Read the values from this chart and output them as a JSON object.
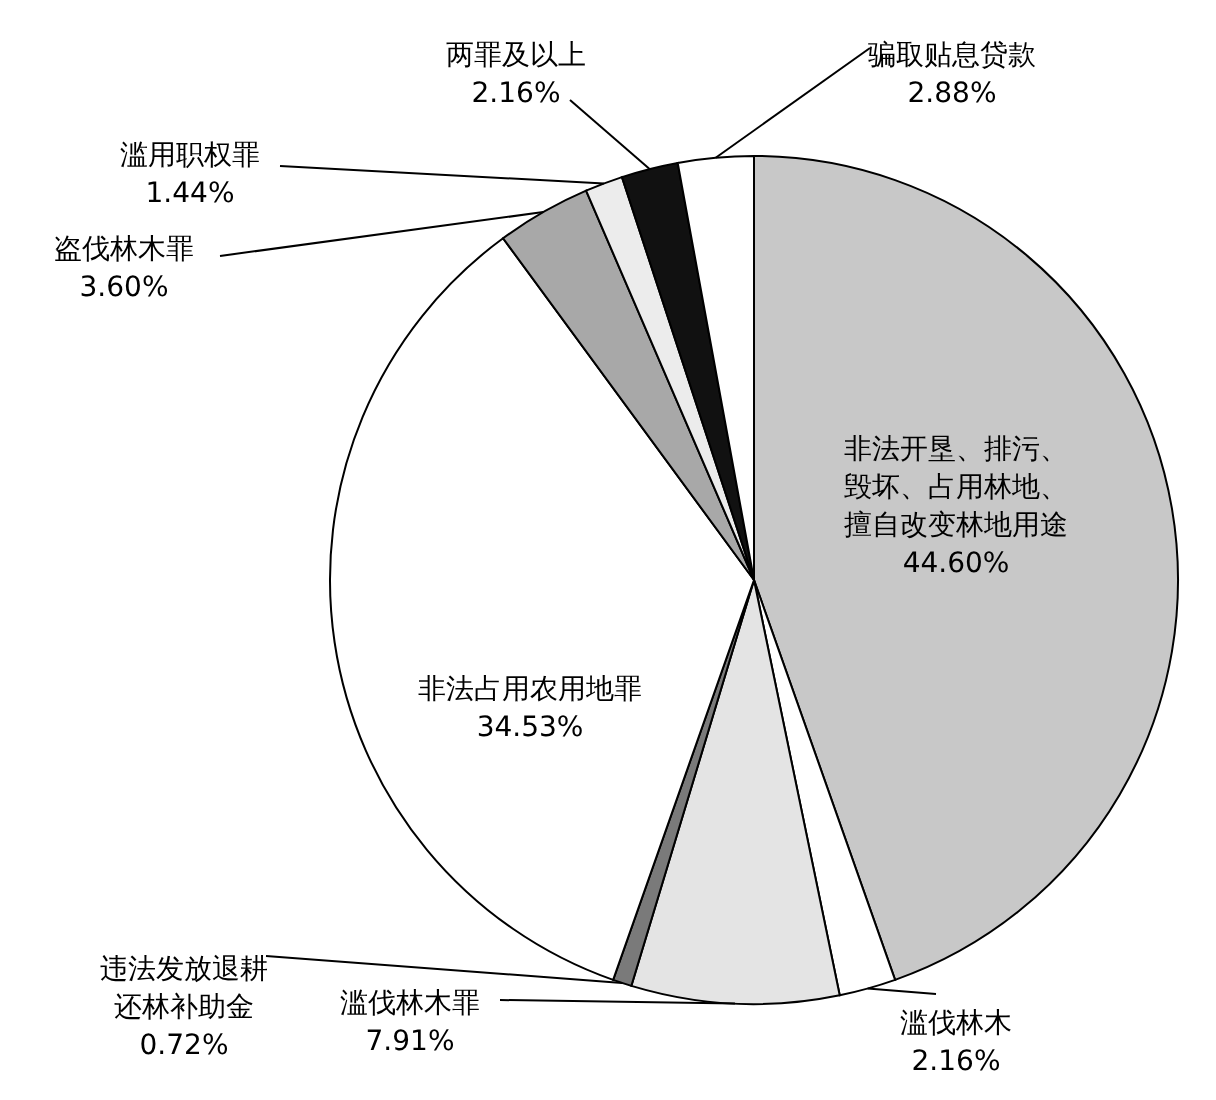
{
  "chart_data": {
    "type": "pie",
    "categories": [
      "非法开垦、排污、毁坏、占用林地、擅自改变林地用途",
      "滥伐林木",
      "滥伐林木罪",
      "违法发放退耕还林补助金",
      "非法占用农用地罪",
      "盗伐林木罪",
      "滥用职权罪",
      "两罪及以上",
      "骗取贴息贷款"
    ],
    "values": [
      44.6,
      2.16,
      7.91,
      0.72,
      34.53,
      3.6,
      1.44,
      2.16,
      2.88
    ],
    "value_labels": [
      "44.60%",
      "2.16%",
      "7.91%",
      "0.72%",
      "34.53%",
      "3.60%",
      "1.44%",
      "2.16%",
      "2.88%"
    ],
    "colors": [
      "#c8c8c8",
      "#ffffff",
      "#e4e4e4",
      "#7a7a7a",
      "#ffffff",
      "#a8a8a8",
      "#ececec",
      "#111111",
      "#ffffff"
    ]
  }
}
